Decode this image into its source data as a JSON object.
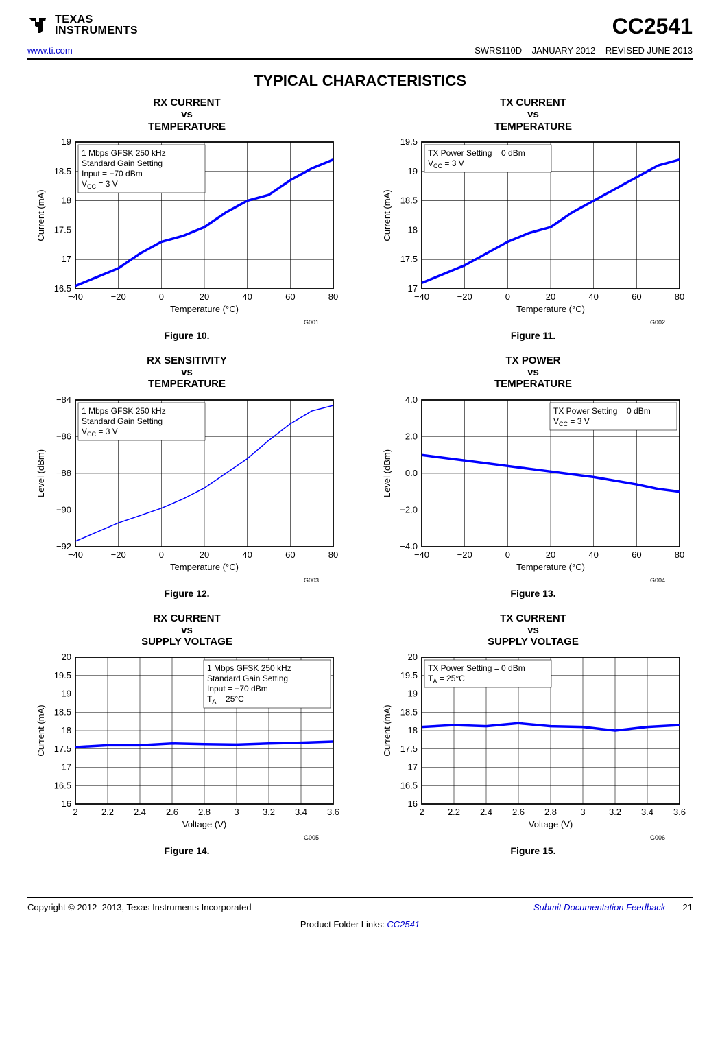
{
  "header": {
    "logo_top": "TEXAS",
    "logo_bottom": "INSTRUMENTS",
    "part": "CC2541",
    "url": "www.ti.com",
    "docline": "SWRS110D – JANUARY 2012 – REVISED JUNE 2013"
  },
  "section_title": "TYPICAL CHARACTERISTICS",
  "charts": [
    {
      "title_l1": "RX CURRENT",
      "title_l2": "vs",
      "title_l3": "TEMPERATURE",
      "fig": "Figure 10.",
      "gref": "G001",
      "xlabel": "Temperature (°C)",
      "ylabel": "Current (mA)",
      "xmin": -40,
      "xmax": 80,
      "xticks": [
        -40,
        -20,
        0,
        20,
        40,
        60,
        80
      ],
      "ymin": 16.5,
      "ymax": 19,
      "yticks": [
        16.5,
        17,
        17.5,
        18,
        18.5,
        19
      ],
      "grid_color": "#000000",
      "line_color": "#0000ff",
      "line_width": 3.5,
      "legend": [
        "1 Mbps GFSK 250 kHz",
        "Standard Gain Setting",
        "Input = −70 dBm",
        "V_CC = 3 V"
      ],
      "legend_pos": "topleft",
      "data": [
        [
          -40,
          16.55
        ],
        [
          -30,
          16.7
        ],
        [
          -20,
          16.85
        ],
        [
          -10,
          17.1
        ],
        [
          0,
          17.3
        ],
        [
          10,
          17.4
        ],
        [
          20,
          17.55
        ],
        [
          30,
          17.8
        ],
        [
          40,
          18.0
        ],
        [
          50,
          18.1
        ],
        [
          60,
          18.35
        ],
        [
          70,
          18.55
        ],
        [
          80,
          18.7
        ]
      ]
    },
    {
      "title_l1": "TX CURRENT",
      "title_l2": "vs",
      "title_l3": "TEMPERATURE",
      "fig": "Figure 11.",
      "gref": "G002",
      "xlabel": "Temperature (°C)",
      "ylabel": "Current (mA)",
      "xmin": -40,
      "xmax": 80,
      "xticks": [
        -40,
        -20,
        0,
        20,
        40,
        60,
        80
      ],
      "ymin": 17,
      "ymax": 19.5,
      "yticks": [
        17,
        17.5,
        18,
        18.5,
        19,
        19.5
      ],
      "grid_color": "#000000",
      "line_color": "#0000ff",
      "line_width": 3.5,
      "legend": [
        "TX Power Setting = 0 dBm",
        "V_CC = 3 V"
      ],
      "legend_pos": "topleft",
      "data": [
        [
          -40,
          17.1
        ],
        [
          -30,
          17.25
        ],
        [
          -20,
          17.4
        ],
        [
          -10,
          17.6
        ],
        [
          0,
          17.8
        ],
        [
          10,
          17.95
        ],
        [
          20,
          18.05
        ],
        [
          30,
          18.3
        ],
        [
          40,
          18.5
        ],
        [
          50,
          18.7
        ],
        [
          60,
          18.9
        ],
        [
          70,
          19.1
        ],
        [
          80,
          19.2
        ]
      ]
    },
    {
      "title_l1": "RX SENSITIVITY",
      "title_l2": "vs",
      "title_l3": "TEMPERATURE",
      "fig": "Figure 12.",
      "gref": "G003",
      "xlabel": "Temperature (°C)",
      "ylabel": "Level (dBm)",
      "xmin": -40,
      "xmax": 80,
      "xticks": [
        -40,
        -20,
        0,
        20,
        40,
        60,
        80
      ],
      "ymin": -92,
      "ymax": -84,
      "yticks": [
        -92,
        -90,
        -88,
        -86,
        -84
      ],
      "grid_color": "#000000",
      "line_color": "#0000ff",
      "line_width": 1.5,
      "legend": [
        "1 Mbps GFSK 250 kHz",
        "Standard Gain Setting",
        "V_CC = 3 V"
      ],
      "legend_pos": "topleft",
      "data": [
        [
          -40,
          -91.7
        ],
        [
          -30,
          -91.2
        ],
        [
          -20,
          -90.7
        ],
        [
          -10,
          -90.3
        ],
        [
          0,
          -89.9
        ],
        [
          10,
          -89.4
        ],
        [
          20,
          -88.8
        ],
        [
          30,
          -88.0
        ],
        [
          40,
          -87.2
        ],
        [
          50,
          -86.2
        ],
        [
          60,
          -85.3
        ],
        [
          70,
          -84.6
        ],
        [
          80,
          -84.3
        ]
      ]
    },
    {
      "title_l1": "TX POWER",
      "title_l2": "vs",
      "title_l3": "TEMPERATURE",
      "fig": "Figure 13.",
      "gref": "G004",
      "xlabel": "Temperature (°C)",
      "ylabel": "Level (dBm)",
      "xmin": -40,
      "xmax": 80,
      "xticks": [
        -40,
        -20,
        0,
        20,
        40,
        60,
        80
      ],
      "ymin": -4.0,
      "ymax": 4.0,
      "yticks": [
        -4.0,
        -2.0,
        0.0,
        2.0,
        4.0
      ],
      "ytick_fmt": "fixed1",
      "grid_color": "#000000",
      "line_color": "#0000ff",
      "line_width": 3.5,
      "legend": [
        "TX Power Setting = 0 dBm",
        "V_CC = 3 V"
      ],
      "legend_pos": "topright",
      "data": [
        [
          -40,
          1.0
        ],
        [
          -30,
          0.85
        ],
        [
          -20,
          0.7
        ],
        [
          -10,
          0.55
        ],
        [
          0,
          0.4
        ],
        [
          10,
          0.25
        ],
        [
          20,
          0.1
        ],
        [
          30,
          -0.05
        ],
        [
          40,
          -0.2
        ],
        [
          50,
          -0.4
        ],
        [
          60,
          -0.6
        ],
        [
          70,
          -0.85
        ],
        [
          80,
          -1.0
        ]
      ]
    },
    {
      "title_l1": "RX CURRENT",
      "title_l2": "vs",
      "title_l3": "SUPPLY VOLTAGE",
      "fig": "Figure 14.",
      "gref": "G005",
      "xlabel": "Voltage (V)",
      "ylabel": "Current (mA)",
      "xmin": 2,
      "xmax": 3.6,
      "xticks": [
        2,
        2.2,
        2.4,
        2.6,
        2.8,
        3,
        3.2,
        3.4,
        3.6
      ],
      "ymin": 16,
      "ymax": 20,
      "yticks": [
        16,
        16.5,
        17,
        17.5,
        18,
        18.5,
        19,
        19.5,
        20
      ],
      "grid_color": "#000000",
      "line_color": "#0000ff",
      "line_width": 3.5,
      "legend": [
        "1 Mbps GFSK 250 kHz",
        "Standard Gain Setting",
        "Input = −70 dBm",
        "T_A = 25°C"
      ],
      "legend_pos": "topright",
      "data": [
        [
          2,
          17.55
        ],
        [
          2.2,
          17.6
        ],
        [
          2.4,
          17.6
        ],
        [
          2.6,
          17.65
        ],
        [
          2.8,
          17.63
        ],
        [
          3,
          17.62
        ],
        [
          3.2,
          17.65
        ],
        [
          3.4,
          17.67
        ],
        [
          3.6,
          17.7
        ]
      ]
    },
    {
      "title_l1": "TX CURRENT",
      "title_l2": "vs",
      "title_l3": "SUPPLY VOLTAGE",
      "fig": "Figure 15.",
      "gref": "G006",
      "xlabel": "Voltage (V)",
      "ylabel": "Current (mA)",
      "xmin": 2,
      "xmax": 3.6,
      "xticks": [
        2,
        2.2,
        2.4,
        2.6,
        2.8,
        3,
        3.2,
        3.4,
        3.6
      ],
      "ymin": 16,
      "ymax": 20,
      "yticks": [
        16,
        16.5,
        17,
        17.5,
        18,
        18.5,
        19,
        19.5,
        20
      ],
      "grid_color": "#000000",
      "line_color": "#0000ff",
      "line_width": 3.5,
      "legend": [
        "TX Power Setting = 0 dBm",
        "T_A = 25°C"
      ],
      "legend_pos": "topleft",
      "data": [
        [
          2,
          18.1
        ],
        [
          2.2,
          18.15
        ],
        [
          2.4,
          18.12
        ],
        [
          2.6,
          18.2
        ],
        [
          2.8,
          18.12
        ],
        [
          3,
          18.1
        ],
        [
          3.2,
          18.0
        ],
        [
          3.4,
          18.1
        ],
        [
          3.6,
          18.15
        ]
      ]
    }
  ],
  "footer": {
    "copyright": "Copyright © 2012–2013, Texas Instruments Incorporated",
    "feedback": "Submit Documentation Feedback",
    "page": "21",
    "links_prefix": "Product Folder Links: ",
    "link": "CC2541"
  }
}
